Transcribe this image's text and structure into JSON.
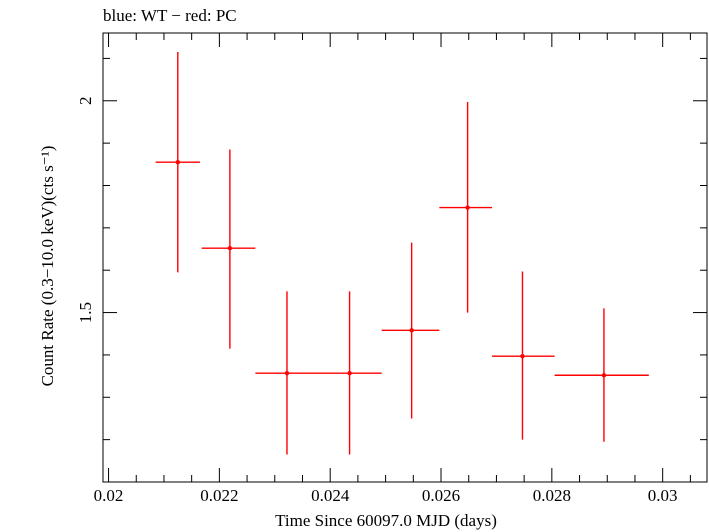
{
  "chart_data": {
    "type": "scatter",
    "title": "blue: WT − red: PC",
    "xlabel": "Time Since 60097.0 MJD (days)",
    "ylabel": "Count Rate (0.3−10.0 keV)(cts s⁻¹)",
    "xlim": [
      0.0199,
      0.0308
    ],
    "ylim": [
      1.1,
      2.16
    ],
    "x_ticks": [
      {
        "value": 0.02,
        "label": "0.02"
      },
      {
        "value": 0.022,
        "label": "0.022"
      },
      {
        "value": 0.024,
        "label": "0.024"
      },
      {
        "value": 0.026,
        "label": "0.026"
      },
      {
        "value": 0.028,
        "label": "0.028"
      },
      {
        "value": 0.03,
        "label": "0.03"
      }
    ],
    "y_ticks": [
      {
        "value": 1.5,
        "label": "1.5"
      },
      {
        "value": 2.0,
        "label": "2"
      }
    ],
    "series": [
      {
        "name": "PC",
        "color": "#ff0000",
        "points": [
          {
            "x": 0.02125,
            "y": 1.855,
            "xerr": [
              0.02085,
              0.02165
            ],
            "yerr": [
              1.595,
              2.115
            ]
          },
          {
            "x": 0.02219,
            "y": 1.652,
            "xerr": [
              0.02168,
              0.02265
            ],
            "yerr": [
              1.415,
              1.885
            ]
          },
          {
            "x": 0.02322,
            "y": 1.357,
            "xerr": [
              0.02265,
              0.02378
            ],
            "yerr": [
              1.165,
              1.55
            ]
          },
          {
            "x": 0.02435,
            "y": 1.357,
            "xerr": [
              0.02378,
              0.02493
            ],
            "yerr": [
              1.165,
              1.55
            ]
          },
          {
            "x": 0.02547,
            "y": 1.458,
            "xerr": [
              0.02493,
              0.02597
            ],
            "yerr": [
              1.25,
              1.665
            ]
          },
          {
            "x": 0.02648,
            "y": 1.748,
            "xerr": [
              0.02597,
              0.02692
            ],
            "yerr": [
              1.5,
              1.997
            ]
          },
          {
            "x": 0.02747,
            "y": 1.397,
            "xerr": [
              0.02692,
              0.02805
            ],
            "yerr": [
              1.2,
              1.597
            ]
          },
          {
            "x": 0.02894,
            "y": 1.352,
            "xerr": [
              0.02805,
              0.02975
            ],
            "yerr": [
              1.195,
              1.51
            ]
          }
        ]
      }
    ]
  }
}
